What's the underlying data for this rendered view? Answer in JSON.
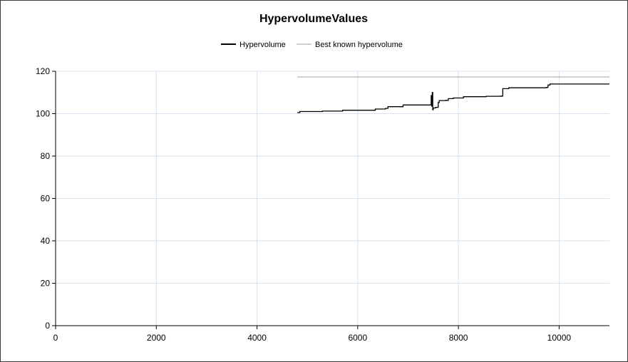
{
  "chart_data": {
    "type": "line",
    "title": "HypervolumeValues",
    "xlabel": "",
    "ylabel": "",
    "xlim": [
      0,
      11000
    ],
    "ylim": [
      0,
      120
    ],
    "x_ticks": [
      "0",
      "2000",
      "4000",
      "6000",
      "8000",
      "10000"
    ],
    "y_ticks": [
      "0",
      "20",
      "40",
      "60",
      "80",
      "100",
      "120"
    ],
    "grid": true,
    "legend_position": "top-center",
    "series": [
      {
        "name": "Hypervolume",
        "color": "#000000",
        "step": true,
        "points": [
          [
            4800,
            100.5
          ],
          [
            4850,
            101.0
          ],
          [
            5300,
            101.2
          ],
          [
            5700,
            101.6
          ],
          [
            6350,
            102.2
          ],
          [
            6550,
            102.5
          ],
          [
            6600,
            103.3
          ],
          [
            6850,
            103.3
          ],
          [
            6900,
            104.1
          ],
          [
            7450,
            104.2
          ],
          [
            7460,
            108.5
          ],
          [
            7470,
            103.5
          ],
          [
            7480,
            110.0
          ],
          [
            7490,
            101.8
          ],
          [
            7500,
            102.7
          ],
          [
            7550,
            103.0
          ],
          [
            7600,
            105.3
          ],
          [
            7620,
            106.2
          ],
          [
            7750,
            106.3
          ],
          [
            7800,
            107.1
          ],
          [
            7900,
            107.4
          ],
          [
            8100,
            108.0
          ],
          [
            8550,
            108.2
          ],
          [
            8850,
            108.3
          ],
          [
            8880,
            111.8
          ],
          [
            9000,
            112.2
          ],
          [
            9750,
            112.4
          ],
          [
            9780,
            113.5
          ],
          [
            9820,
            114.0
          ],
          [
            11000,
            114.0
          ]
        ]
      },
      {
        "name": "Best known hypervolume",
        "color": "#a0a0a0",
        "step": false,
        "points": [
          [
            4800,
            117.3
          ],
          [
            11000,
            117.3
          ]
        ]
      }
    ]
  }
}
